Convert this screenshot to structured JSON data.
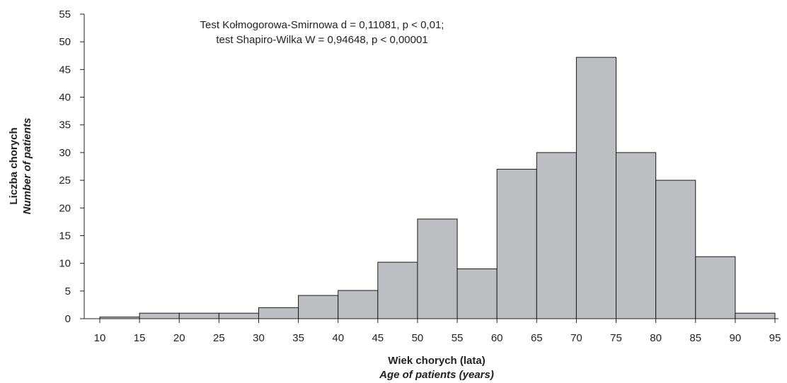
{
  "chart_data": {
    "type": "bar",
    "subtype": "histogram",
    "bin_edges": [
      10,
      15,
      20,
      25,
      30,
      35,
      40,
      45,
      50,
      55,
      60,
      65,
      70,
      75,
      80,
      85,
      90,
      95
    ],
    "values": [
      0.3,
      1,
      1,
      1,
      2,
      4.2,
      5.1,
      10.2,
      18,
      9,
      27,
      30,
      47.2,
      30,
      25,
      11.2,
      1
    ],
    "x_ticks": [
      "10",
      "15",
      "20",
      "25",
      "30",
      "35",
      "40",
      "45",
      "50",
      "55",
      "60",
      "65",
      "70",
      "75",
      "80",
      "85",
      "90",
      "95"
    ],
    "y_ticks": [
      "0",
      "5",
      "10",
      "15",
      "20",
      "25",
      "30",
      "35",
      "40",
      "45",
      "50",
      "55"
    ],
    "ylim": [
      0,
      55
    ],
    "xlim": [
      10,
      95
    ],
    "xlabel": "Wiek chorych (lata)",
    "xlabel_en": "Age of patients (years)",
    "ylabel": "Liczba chorych",
    "ylabel_en": "Number of patients",
    "annotation_line1": "Test Kołmogorowa-Smirnowa d = 0,11081, p < 0,01;",
    "annotation_line2": "test Shapiro-Wilka W = 0,94648, p < 0,00001",
    "bar_color": "#bdbec2",
    "bar_edge_color": "#1a1a1a",
    "grid": false
  }
}
